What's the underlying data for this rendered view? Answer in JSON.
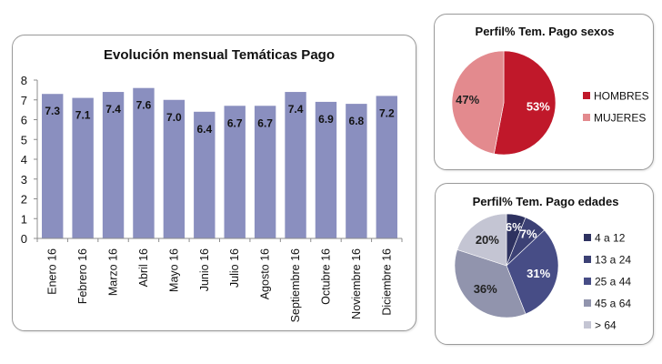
{
  "chart_data": [
    {
      "type": "bar",
      "title": "Evolución mensual Temáticas Pago",
      "xlabel": "",
      "ylabel": "",
      "categories": [
        "Enero 16",
        "Febrero 16",
        "Marzo 16",
        "Abril 16",
        "Mayo 16",
        "Junio 16",
        "Julio 16",
        "Agosto 16",
        "Septiembre 16",
        "Octubre 16",
        "Noviembre 16",
        "Diciembre 16"
      ],
      "values": [
        7.3,
        7.1,
        7.4,
        7.6,
        7.0,
        6.4,
        6.7,
        6.7,
        7.4,
        6.9,
        6.8,
        7.2
      ],
      "data_labels": [
        "7.3",
        "7.1",
        "7.4",
        "7.6",
        "7.0",
        "6.4",
        "6.7",
        "6.7",
        "7.4",
        "6.9",
        "6.8",
        "7.2"
      ],
      "ylim": [
        0,
        8
      ],
      "yticks": [
        "0",
        "1",
        "2",
        "3",
        "4",
        "5",
        "6",
        "7",
        "8"
      ],
      "grid": false,
      "legend": "none",
      "bar_color": "#8a8fbf"
    },
    {
      "type": "pie",
      "title": "Perfil% Tem. Pago sexos",
      "labels": [
        "HOMBRES",
        "MUJERES"
      ],
      "values": [
        53,
        47
      ],
      "data_labels": [
        "53%",
        "47%"
      ],
      "colors": [
        "#c0182a",
        "#e38a8e"
      ],
      "legend_position": "right"
    },
    {
      "type": "pie",
      "title": "Perfil% Tem. Pago edades",
      "labels": [
        "4 a 12",
        "13 a 24",
        "25 a 44",
        "45 a 64",
        "> 64"
      ],
      "values": [
        6,
        7,
        31,
        36,
        20
      ],
      "data_labels": [
        "6%",
        "7%",
        "31%",
        "36%",
        "20%"
      ],
      "colors": [
        "#2e3260",
        "#3c4175",
        "#474d86",
        "#9194ad",
        "#c4c5d3"
      ],
      "legend_position": "right"
    }
  ]
}
